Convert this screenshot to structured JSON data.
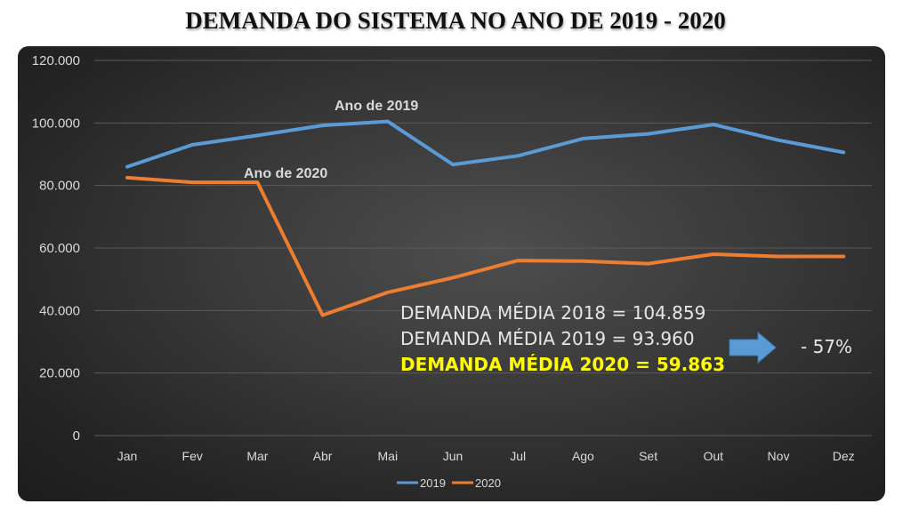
{
  "chart_data": {
    "type": "line",
    "title": "DEMANDA DO SISTEMA NO ANO DE 2019 - 2020",
    "xlabel": "",
    "ylabel": "",
    "categories": [
      "Jan",
      "Fev",
      "Mar",
      "Abr",
      "Mai",
      "Jun",
      "Jul",
      "Ago",
      "Set",
      "Out",
      "Nov",
      "Dez"
    ],
    "ylim": [
      0,
      120000
    ],
    "yticks": [
      0,
      20000,
      40000,
      60000,
      80000,
      100000,
      120000
    ],
    "ytick_labels": [
      "0",
      "20.000",
      "40.000",
      "60.000",
      "80.000",
      "100.000",
      "120.000"
    ],
    "grid": true,
    "legend_position": "bottom",
    "series": [
      {
        "name": "2019",
        "color": "#5b9bd5",
        "label": "Ano de 2019",
        "values": [
          86000,
          93000,
          96000,
          99200,
          100500,
          86700,
          89500,
          95000,
          96500,
          99500,
          94500,
          90600
        ]
      },
      {
        "name": "2020",
        "color": "#ed7d31",
        "label": "Ano de 2020",
        "values": [
          82500,
          81000,
          81000,
          38500,
          45800,
          50500,
          56000,
          55800,
          55000,
          58000,
          57300,
          57300
        ]
      }
    ],
    "annotations": {
      "avg_2018": "DEMANDA MÉDIA 2018  = 104.859",
      "avg_2019": "DEMANDA MÉDIA 2019  = 93.960",
      "avg_2020": "DEMANDA MÉDIA 2020  = 59.863",
      "change": "- 57%",
      "arrow_color": "#5b9bd5",
      "highlight_color": "#ffff00"
    }
  }
}
